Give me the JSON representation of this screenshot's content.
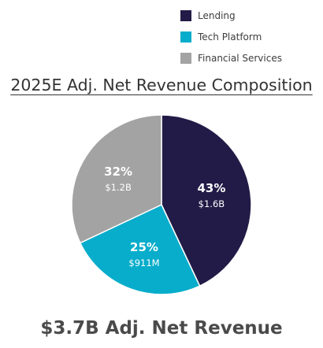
{
  "chart_data": {
    "type": "pie",
    "title": "2025E Adj. Net Revenue Composition",
    "total_label": "$3.7B Adj. Net Revenue",
    "legend_position": "top-right",
    "slices": [
      {
        "name": "Lending",
        "percent_label": "43%",
        "amount_label": "$1.6B",
        "value": 43,
        "color": "#221b47"
      },
      {
        "name": "Tech Platform",
        "percent_label": "25%",
        "amount_label": "$911M",
        "value": 25,
        "color": "#08adcb"
      },
      {
        "name": "Financial Services",
        "percent_label": "32%",
        "amount_label": "$1.2B",
        "value": 32,
        "color": "#a3a3a3"
      }
    ]
  }
}
